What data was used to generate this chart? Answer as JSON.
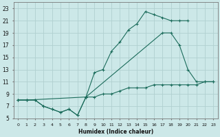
{
  "xlabel": "Humidex (Indice chaleur)",
  "bg_color": "#cce8e8",
  "grid_color": "#b0d0d0",
  "line_color": "#1a6b5a",
  "xlim": [
    -0.5,
    23.5
  ],
  "ylim": [
    5,
    24
  ],
  "xticks": [
    0,
    1,
    2,
    3,
    4,
    5,
    6,
    7,
    8,
    9,
    10,
    11,
    12,
    13,
    14,
    15,
    16,
    17,
    18,
    19,
    20,
    21,
    22,
    23
  ],
  "yticks": [
    5,
    7,
    9,
    11,
    13,
    15,
    17,
    19,
    21,
    23
  ],
  "top_x": [
    0,
    1,
    2,
    3,
    4,
    5,
    6,
    7,
    8,
    9,
    10,
    11,
    12,
    13,
    14,
    15,
    16,
    17,
    18,
    19,
    20
  ],
  "top_y": [
    8,
    8,
    8,
    7,
    6.5,
    6,
    6.5,
    5.5,
    8.5,
    12.5,
    13,
    16,
    17.5,
    19.5,
    20.5,
    22.5,
    22,
    21.5,
    21,
    21,
    21
  ],
  "mid_x": [
    0,
    1,
    2,
    3,
    4,
    5,
    6,
    7,
    8,
    17,
    18,
    19,
    20,
    21,
    22,
    23
  ],
  "mid_y": [
    8,
    8,
    8,
    7,
    6.5,
    6,
    6.5,
    5.5,
    8.5,
    19,
    19,
    17,
    13,
    11,
    11,
    11
  ],
  "bot_x": [
    0,
    1,
    8,
    9,
    10,
    11,
    12,
    13,
    14,
    15,
    16,
    17,
    18,
    19,
    20,
    21,
    22,
    23
  ],
  "bot_y": [
    8,
    8,
    8.5,
    8.5,
    9,
    9,
    9.5,
    10,
    10,
    10,
    10.5,
    10.5,
    10.5,
    10.5,
    10.5,
    10.5,
    11,
    11
  ]
}
